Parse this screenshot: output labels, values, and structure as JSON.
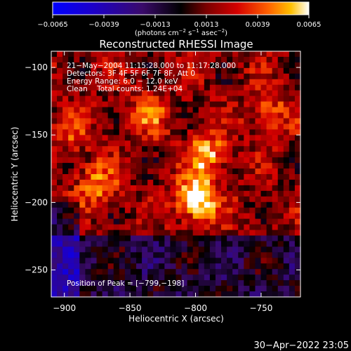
{
  "chart_data": {
    "type": "heatmap",
    "title": "Reconstructed RHESSI Image",
    "xlabel": "Heliocentric X (arcsec)",
    "ylabel": "Heliocentric Y (arcsec)",
    "xlim": [
      -910,
      -720
    ],
    "ylim": [
      -270,
      -88
    ],
    "x_ticks": [
      -900,
      -850,
      -800,
      -750
    ],
    "x_tick_labels": [
      "−900",
      "−850",
      "−800",
      "−750"
    ],
    "y_ticks": [
      -100,
      -150,
      -200,
      -250
    ],
    "y_tick_labels": [
      "−100",
      "−150",
      "−200",
      "−250"
    ],
    "colorbar": {
      "min": -0.0065,
      "max": 0.0065,
      "ticks": [
        -0.0065,
        -0.0039,
        -0.0013,
        0.0013,
        0.0039,
        0.0065
      ],
      "tick_labels": [
        "−0.0065",
        "−0.0039",
        "−0.0013",
        "0.0013",
        "0.0039",
        "0.0065"
      ],
      "label_prefix": "(photons cm",
      "label_exp1": "−2",
      "label_mid": " s",
      "label_exp2": "−1",
      "label_mid2": " asec",
      "label_exp3": "−2",
      "label_suffix": ")"
    },
    "annotations": [
      "21−May−2004 11:15:28.000 to 11:17:28.000",
      "Detectors: 3F 4F 5F 6F 7F 8F, Att 0",
      "Energy Range: 6.0 − 12.0 keV",
      "Clean    Total counts: 1.24E+04"
    ],
    "peak_label": "Position of Peak = [−799,−198]",
    "peak": [
      -799,
      -198
    ],
    "sources": [
      {
        "x": -799,
        "y": -198,
        "amp": 1.0
      },
      {
        "x": -791,
        "y": -165,
        "amp": 0.7
      },
      {
        "x": -876,
        "y": -186,
        "amp": 0.55
      },
      {
        "x": -745,
        "y": -133,
        "amp": 0.45
      },
      {
        "x": -895,
        "y": -148,
        "amp": 0.35
      },
      {
        "x": -835,
        "y": -135,
        "amp": 0.4
      }
    ]
  },
  "timestamp": "30−Apr−2022 23:05"
}
